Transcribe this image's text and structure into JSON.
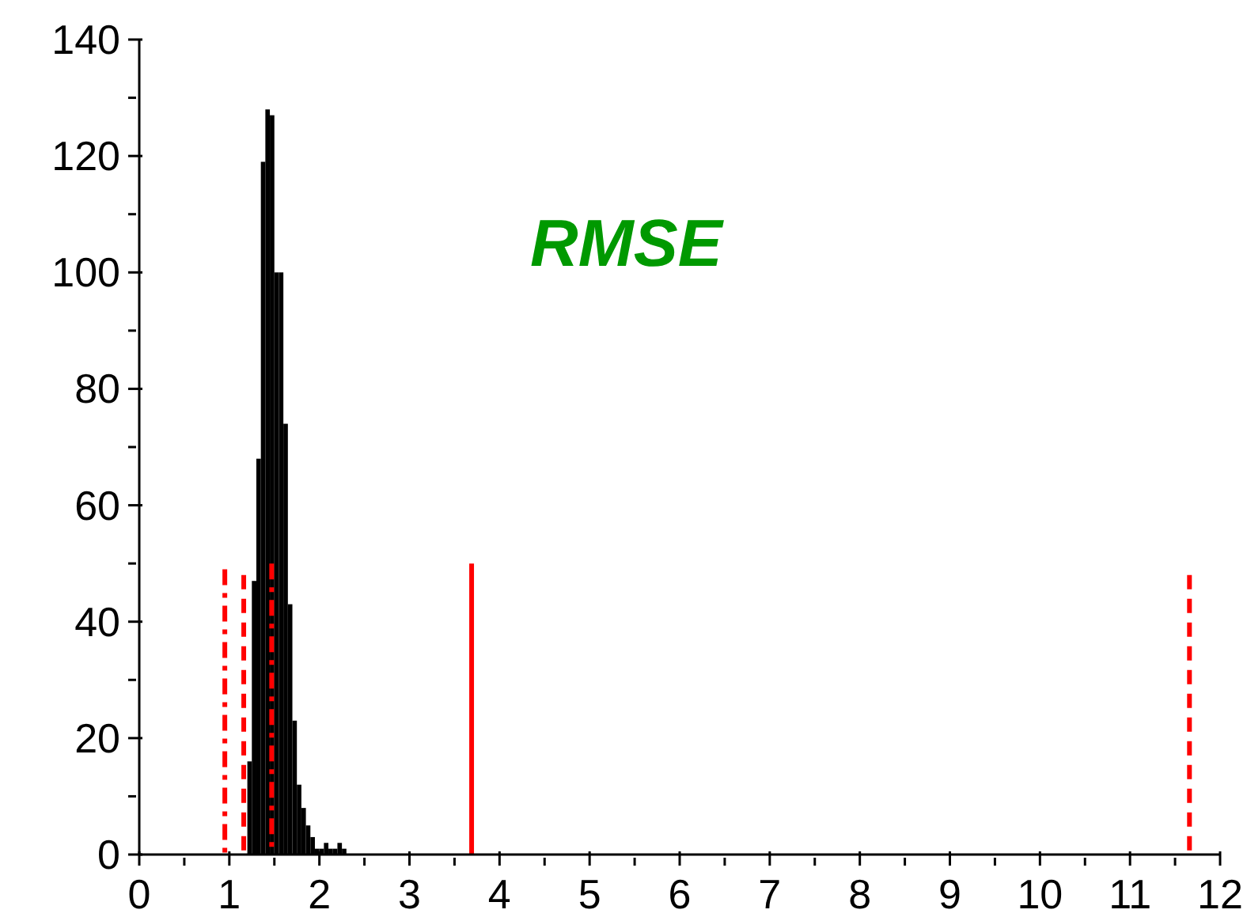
{
  "chart_data": {
    "type": "histogram",
    "title": "RMSE",
    "bins": [
      1.2,
      1.25,
      1.3,
      1.35,
      1.4,
      1.45,
      1.5,
      1.55,
      1.6,
      1.65,
      1.7,
      1.75,
      1.8,
      1.85,
      1.9,
      1.95,
      2.0,
      2.05,
      2.1,
      2.15,
      2.2,
      2.25,
      2.3
    ],
    "values": [
      16,
      47,
      68,
      119,
      128,
      127,
      100,
      100,
      74,
      43,
      23,
      12,
      8,
      5,
      3,
      1,
      1,
      2,
      1,
      1,
      2,
      1
    ],
    "color": "#000000",
    "series": [
      {
        "type": "line",
        "color": "#ff0000",
        "line_style": "dashdot",
        "x": [
          0.95,
          0.95
        ],
        "values": [
          0,
          49
        ]
      },
      {
        "type": "line",
        "color": "#ff0000",
        "line_style": "dashed",
        "x": [
          1.16,
          1.16
        ],
        "values": [
          0,
          48
        ]
      },
      {
        "type": "line",
        "color": "#ff0000",
        "line_style": "dashdot",
        "x": [
          1.47,
          1.47
        ],
        "values": [
          0,
          50
        ]
      },
      {
        "type": "line",
        "color": "#ff0000",
        "line_style": "solid",
        "x": [
          3.69,
          3.69
        ],
        "values": [
          0,
          50
        ]
      },
      {
        "type": "line",
        "color": "#ff0000",
        "line_style": "dashed",
        "x": [
          11.66,
          11.66
        ],
        "values": [
          0,
          48
        ]
      }
    ],
    "xlim": [
      0,
      12
    ],
    "xticks": [
      0,
      {
        "value": 0.5,
        "label": null
      },
      1,
      {
        "value": 1.5,
        "label": null
      },
      2,
      {
        "value": 2.5,
        "label": null
      },
      3,
      {
        "value": 3.5,
        "label": null
      },
      4,
      {
        "value": 4.5,
        "label": null
      },
      5,
      {
        "value": 5.5,
        "label": null
      },
      6,
      {
        "value": 6.5,
        "label": null
      },
      7,
      {
        "value": 7.5,
        "label": null
      },
      8,
      {
        "value": 8.5,
        "label": null
      },
      9,
      {
        "value": 9.5,
        "label": null
      },
      10,
      {
        "value": 10.5,
        "label": null
      },
      11,
      {
        "value": 11.5,
        "label": null
      },
      12
    ],
    "ylim": [
      0,
      140
    ],
    "yticks": [
      0,
      {
        "value": 10,
        "label": null
      },
      20,
      {
        "value": 30,
        "label": null
      },
      40,
      {
        "value": 50,
        "label": null
      },
      60,
      {
        "value": 70,
        "label": null
      },
      80,
      {
        "value": 90,
        "label": null
      },
      100,
      {
        "value": 110,
        "label": null
      },
      120,
      {
        "value": 130,
        "label": null
      },
      140
    ],
    "grid": false,
    "marker": "none"
  }
}
